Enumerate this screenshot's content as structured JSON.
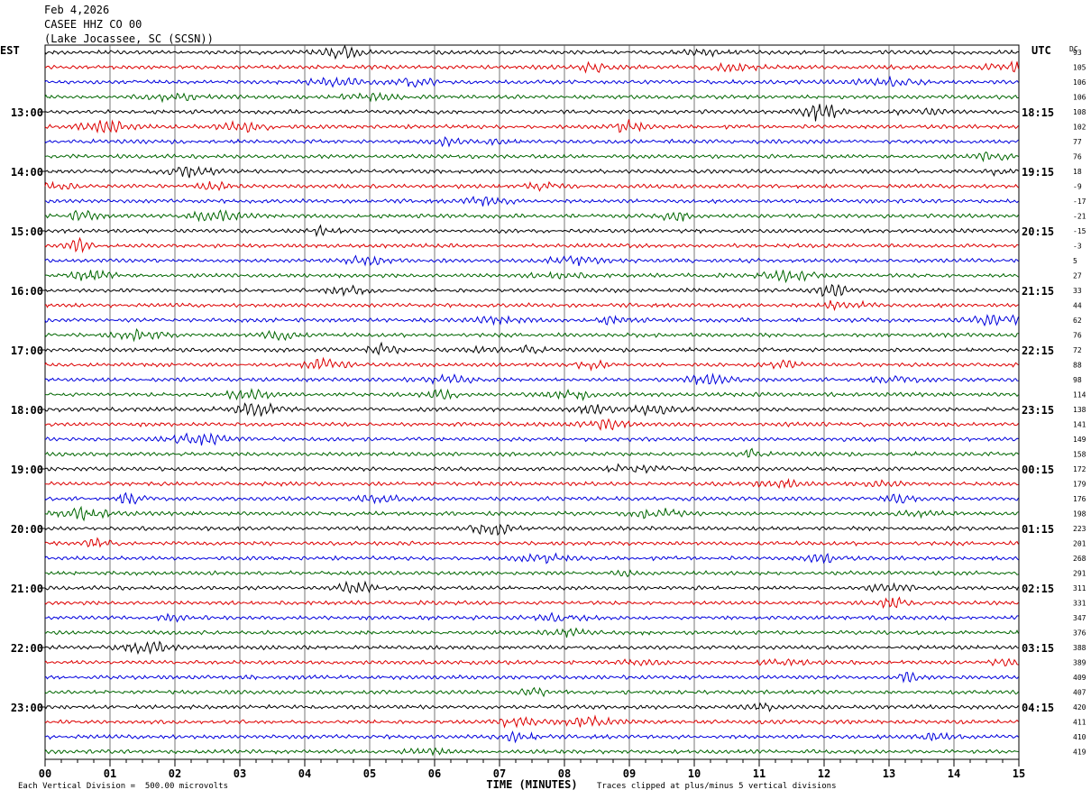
{
  "header": {
    "date": "Feb 4,2026",
    "station": "CASEE HHZ CO 00",
    "location": "(Lake Jocassee, SC (SCSN))"
  },
  "chart_data": {
    "type": "line",
    "title": "Feb 4,2026 CASEE HHZ CO 00 (Lake Jocassee, SC (SCSN))",
    "xlabel": "TIME (MINUTES)",
    "x_ticks": [
      "00",
      "01",
      "02",
      "03",
      "04",
      "05",
      "06",
      "07",
      "08",
      "09",
      "10",
      "11",
      "12",
      "13",
      "14",
      "15"
    ],
    "xlim": [
      0,
      15
    ],
    "left_axis_label": "EST",
    "right_axis_label": "UTC",
    "dc_label": "DC",
    "est_hours": [
      "13:00",
      "14:00",
      "15:00",
      "16:00",
      "17:00",
      "18:00",
      "19:00",
      "20:00",
      "21:00",
      "22:00",
      "23:00"
    ],
    "utc_hours": [
      "18:15",
      "19:15",
      "20:15",
      "21:15",
      "22:15",
      "23:15",
      "00:15",
      "01:15",
      "02:15",
      "03:15",
      "04:15"
    ],
    "dc_offsets": [
      "93",
      "105",
      "106",
      "106",
      "108",
      "102",
      "77",
      "76",
      "18",
      "-9",
      "-17",
      "-21",
      "-15",
      "-3",
      "5",
      "27",
      "33",
      "44",
      "62",
      "76",
      "72",
      "88",
      "98",
      "114",
      "138",
      "141",
      "149",
      "158",
      "172",
      "179",
      "176",
      "198",
      "223",
      "201",
      "268",
      "291",
      "311",
      "331",
      "347",
      "376",
      "388",
      "389",
      "409",
      "407",
      "420",
      "411",
      "410",
      "419"
    ],
    "trace_colors": [
      "#000000",
      "#dd0000",
      "#0000dd",
      "#006600"
    ],
    "grid": true,
    "footnote_left": "Each Vertical Division =  500.00 microvolts",
    "footnote_right": "Traces clipped at plus/minus 5 vertical divisions"
  }
}
